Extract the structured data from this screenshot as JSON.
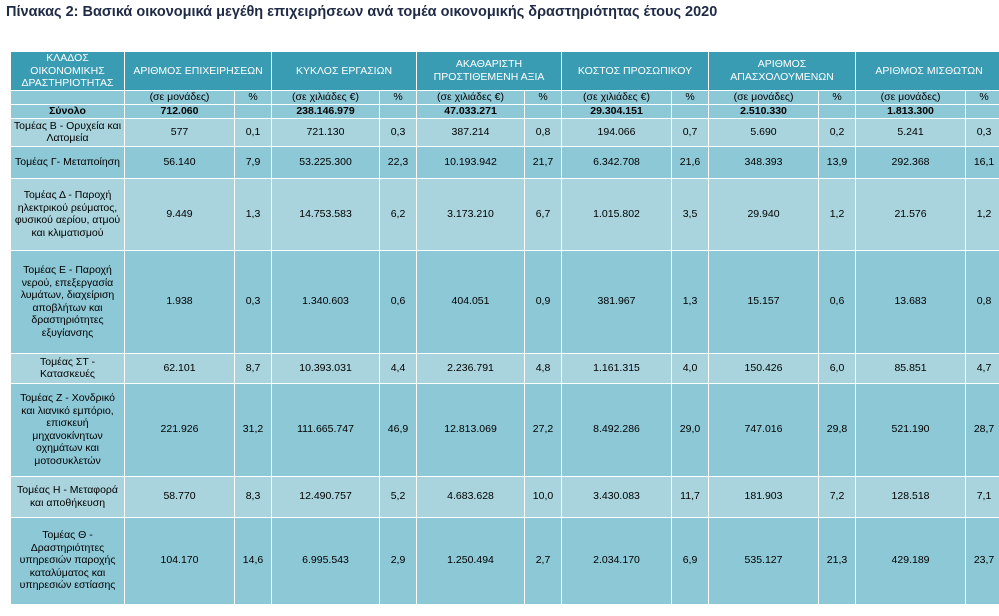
{
  "title": "Πίνακας 2: Βασικά οικονομικά μεγέθη επιχειρήσεων ανά τομέα οικονομικής δραστηριότητας έτους 2020",
  "headers": {
    "sector": "ΚΛΑΔΟΣ ΟΙΚΟΝΟΜΙΚΗΣ ΔΡΑΣΤΗΡΙΟΤΗΤΑΣ",
    "enterprises": "ΑΡΙΘΜΟΣ ΕΠΙΧΕΙΡΗΣΕΩΝ",
    "turnover": "ΚΥΚΛΟΣ ΕΡΓΑΣΙΩΝ",
    "value_added": "ΑΚΑΘΑΡΙΣΤΗ ΠΡΟΣΤΙΘΕΜΕΝΗ ΑΞΙΑ",
    "personnel_cost": "ΚΟΣΤΟΣ ΠΡΟΣΩΠΙΚΟΥ",
    "employed": "ΑΡΙΘΜΟΣ ΑΠΑΣΧΟΛΟΥΜΕΝΩΝ",
    "employees": "ΑΡΙΘΜΟΣ ΜΙΣΘΩΤΩΝ"
  },
  "units": {
    "units": "(σε μονάδες)",
    "thousands": "(σε χιλιάδες €)",
    "percent": "%"
  },
  "total": {
    "label": "Σύνολο",
    "values": [
      "712.060",
      "",
      "238.146.979",
      "",
      "47.033.271",
      "",
      "29.304.151",
      "",
      "2.510.330",
      "",
      "1.813.300",
      ""
    ]
  },
  "rows": [
    {
      "label": "Τομέας Β - Ορυχεία και Λατομεία",
      "values": [
        "577",
        "0,1",
        "721.130",
        "0,3",
        "387.214",
        "0,8",
        "194.066",
        "0,7",
        "5.690",
        "0,2",
        "5.241",
        "0,3"
      ]
    },
    {
      "label": "Τομέας Γ- Μεταποίηση",
      "values": [
        "56.140",
        "7,9",
        "53.225.300",
        "22,3",
        "10.193.942",
        "21,7",
        "6.342.708",
        "21,6",
        "348.393",
        "13,9",
        "292.368",
        "16,1"
      ]
    },
    {
      "label": "Τομέας Δ - Παροχή ηλεκτρικού ρεύματος, φυσικού αερίου, ατμού και κλιματισμού",
      "values": [
        "9.449",
        "1,3",
        "14.753.583",
        "6,2",
        "3.173.210",
        "6,7",
        "1.015.802",
        "3,5",
        "29.940",
        "1,2",
        "21.576",
        "1,2"
      ]
    },
    {
      "label": "Τομέας Ε - Παροχή νερού, επεξεργασία λυμάτων, διαχείριση αποβλήτων και δραστηριότητες εξυγίανσης",
      "values": [
        "1.938",
        "0,3",
        "1.340.603",
        "0,6",
        "404.051",
        "0,9",
        "381.967",
        "1,3",
        "15.157",
        "0,6",
        "13.683",
        "0,8"
      ]
    },
    {
      "label": "Τομέας ΣΤ - Κατασκευές",
      "values": [
        "62.101",
        "8,7",
        "10.393.031",
        "4,4",
        "2.236.791",
        "4,8",
        "1.161.315",
        "4,0",
        "150.426",
        "6,0",
        "85.851",
        "4,7"
      ]
    },
    {
      "label": "Τομέας Ζ - Χονδρικό και λιανικό εμπόριο, επισκευή μηχανοκίνητων οχημάτων και μοτοσυκλετών",
      "values": [
        "221.926",
        "31,2",
        "111.665.747",
        "46,9",
        "12.813.069",
        "27,2",
        "8.492.286",
        "29,0",
        "747.016",
        "29,8",
        "521.190",
        "28,7"
      ]
    },
    {
      "label": "Τομέας Η - Μεταφορά και αποθήκευση",
      "values": [
        "58.770",
        "8,3",
        "12.490.757",
        "5,2",
        "4.683.628",
        "10,0",
        "3.430.083",
        "11,7",
        "181.903",
        "7,2",
        "128.518",
        "7,1"
      ]
    },
    {
      "label": "Τομέας Θ - Δραστηριότητες υπηρεσιών παροχής καταλύματος και υπηρεσιών εστίασης",
      "values": [
        "104.170",
        "14,6",
        "6.995.543",
        "2,9",
        "1.250.494",
        "2,7",
        "2.034.170",
        "6,9",
        "535.127",
        "21,3",
        "429.189",
        "23,7"
      ]
    }
  ]
}
